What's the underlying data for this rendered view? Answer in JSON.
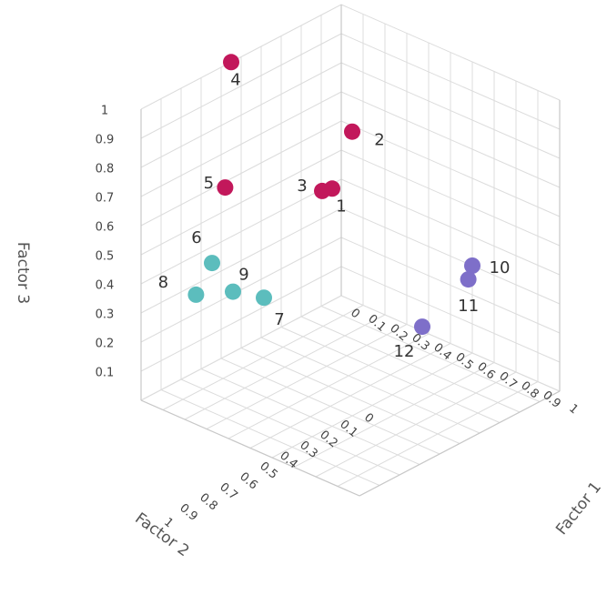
{
  "chart_data": {
    "type": "scatter3d",
    "xlabel": "Factor 1",
    "ylabel": "Factor 2",
    "zlabel": "Factor 3",
    "xlim": [
      0,
      1
    ],
    "ylim": [
      0,
      1
    ],
    "zlim": [
      0,
      1
    ],
    "x_ticks": [
      "0",
      "0.1",
      "0.2",
      "0.3",
      "0.4",
      "0.5",
      "0.6",
      "0.7",
      "0.8",
      "0.9",
      "1"
    ],
    "y_ticks": [
      "0",
      "0.1",
      "0.2",
      "0.3",
      "0.4",
      "0.5",
      "0.6",
      "0.7",
      "0.8",
      "0.9",
      "1"
    ],
    "z_ticks": [
      "0.1",
      "0.2",
      "0.3",
      "0.4",
      "0.5",
      "0.6",
      "0.7",
      "0.8",
      "0.9",
      "1"
    ],
    "grid": true,
    "points": [
      {
        "label": "1",
        "x": 0.05,
        "y": 0.1,
        "z": 0.42,
        "color": "#c2185b"
      },
      {
        "label": "2",
        "x": 0.05,
        "y": 0.0,
        "z": 0.58,
        "color": "#c2185b"
      },
      {
        "label": "3",
        "x": 0.05,
        "y": 0.15,
        "z": 0.43,
        "color": "#c2185b"
      },
      {
        "label": "4",
        "x": 0.0,
        "y": 0.55,
        "z": 1.0,
        "color": "#c2185b"
      },
      {
        "label": "5",
        "x": 0.0,
        "y": 0.58,
        "z": 0.58,
        "color": "#c2185b"
      },
      {
        "label": "6",
        "x": 0.05,
        "y": 0.7,
        "z": 0.38,
        "color": "#5cbdbd"
      },
      {
        "label": "7",
        "x": 0.15,
        "y": 0.55,
        "z": 0.24,
        "color": "#5cbdbd"
      },
      {
        "label": "8",
        "x": 0.05,
        "y": 0.78,
        "z": 0.3,
        "color": "#5cbdbd"
      },
      {
        "label": "9",
        "x": 0.1,
        "y": 0.65,
        "z": 0.28,
        "color": "#5cbdbd"
      },
      {
        "label": "10",
        "x": 0.6,
        "y": 0.0,
        "z": 0.3,
        "color": "#7e6fc9"
      },
      {
        "label": "11",
        "x": 0.6,
        "y": 0.02,
        "z": 0.26,
        "color": "#7e6fc9"
      },
      {
        "label": "12",
        "x": 0.6,
        "y": 0.25,
        "z": 0.18,
        "color": "#7e6fc9"
      }
    ]
  }
}
